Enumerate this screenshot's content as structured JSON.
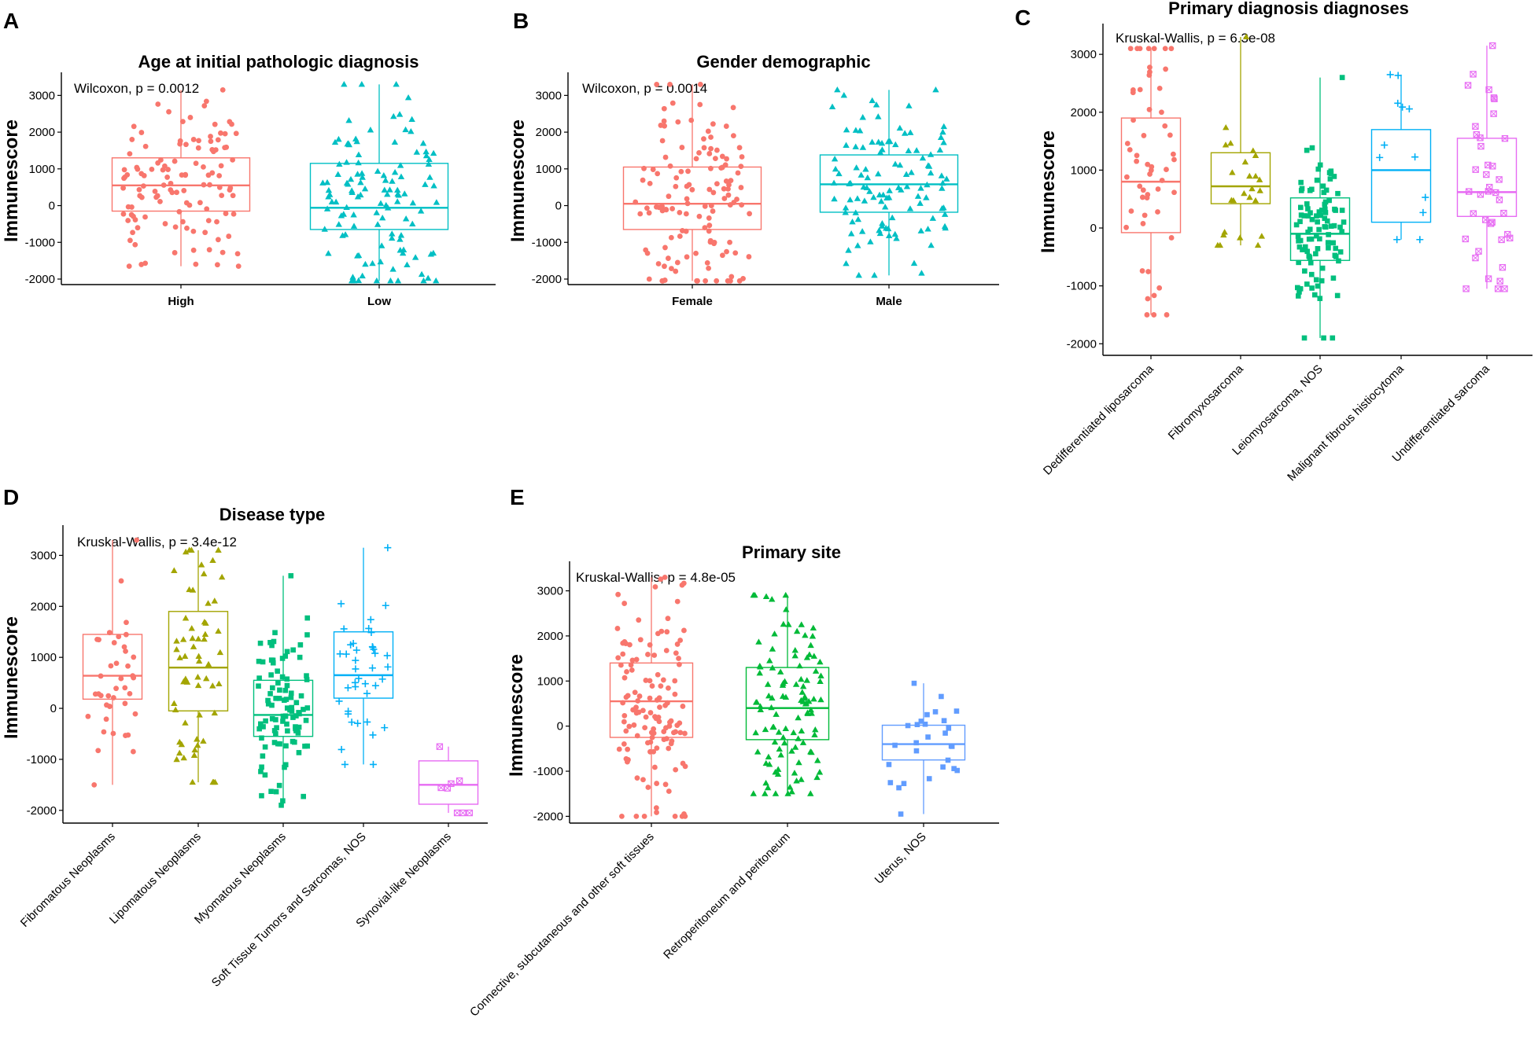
{
  "chart_data": [
    {
      "panel": "A",
      "type": "boxplot",
      "title": "Age at initial pathologic diagnosis",
      "test": "Wilcoxon, p = 0.0012",
      "ylabel": "Immunescore",
      "xlabel": "",
      "ylim": [
        -2150,
        3500
      ],
      "yticks": [
        3000,
        2000,
        1000,
        0,
        -1000,
        -2000
      ],
      "categories": [
        "High",
        "Low"
      ],
      "groups": [
        {
          "name": "High",
          "color": "#F8766D",
          "shape": "circle",
          "q1": -150,
          "median": 550,
          "q3": 1300,
          "lower": -1650,
          "upper": 3150,
          "n": 120
        },
        {
          "name": "Low",
          "color": "#00BFC4",
          "shape": "triangle",
          "q1": -650,
          "median": -60,
          "q3": 1150,
          "lower": -2050,
          "upper": 3300,
          "n": 120
        }
      ]
    },
    {
      "panel": "B",
      "type": "boxplot",
      "title": "Gender demographic",
      "test": "Wilcoxon, p = 0.0014",
      "ylabel": "Immunescore",
      "xlabel": "",
      "ylim": [
        -2150,
        3500
      ],
      "yticks": [
        3000,
        2000,
        1000,
        0,
        -1000,
        -2000
      ],
      "categories": [
        "Female",
        "Male"
      ],
      "groups": [
        {
          "name": "Female",
          "color": "#F8766D",
          "shape": "circle",
          "q1": -650,
          "median": 50,
          "q3": 1050,
          "lower": -2050,
          "upper": 3300,
          "n": 130
        },
        {
          "name": "Male",
          "color": "#00BFC4",
          "shape": "triangle",
          "q1": -180,
          "median": 580,
          "q3": 1380,
          "lower": -1900,
          "upper": 3150,
          "n": 115
        }
      ]
    },
    {
      "panel": "C",
      "type": "boxplot",
      "title": "Primary diagnosis diagnoses",
      "test": "Kruskal-Wallis, p = 6.3e-08",
      "ylabel": "Immunescore",
      "xlabel": "",
      "ylim": [
        -2200,
        3450
      ],
      "yticks": [
        3000,
        2000,
        1000,
        0,
        -1000,
        -2000
      ],
      "categories": [
        "Dedifferentiated liposarcoma",
        "Fibromyxosarcoma",
        "Leiomyosarcoma, NOS",
        "Malignant fibrous histiocytoma",
        "Undifferentiated sarcoma"
      ],
      "groups": [
        {
          "name": "Dedifferentiated liposarcoma",
          "color": "#F8766D",
          "shape": "circle",
          "q1": -80,
          "median": 800,
          "q3": 1900,
          "lower": -1500,
          "upper": 3100,
          "n": 55
        },
        {
          "name": "Fibromyxosarcoma",
          "color": "#A3A500",
          "shape": "triangle",
          "q1": 420,
          "median": 720,
          "q3": 1300,
          "lower": -300,
          "upper": 3300,
          "n": 25
        },
        {
          "name": "Leiomyosarcoma, NOS",
          "color": "#00BF7D",
          "shape": "square",
          "q1": -560,
          "median": -100,
          "q3": 520,
          "lower": -1900,
          "upper": 2600,
          "n": 100
        },
        {
          "name": "Malignant fibrous histiocytoma",
          "color": "#00B0F6",
          "shape": "plus",
          "q1": 100,
          "median": 1000,
          "q3": 1700,
          "lower": -200,
          "upper": 2650,
          "n": 12
        },
        {
          "name": "Undifferentiated sarcoma",
          "color": "#E76BF3",
          "shape": "boxx",
          "q1": 200,
          "median": 620,
          "q3": 1550,
          "lower": -1050,
          "upper": 3150,
          "n": 40
        }
      ]
    },
    {
      "panel": "D",
      "type": "boxplot",
      "title": "Disease type",
      "test": "Kruskal-Wallis, p = 3.4e-12",
      "ylabel": "Immunescore",
      "xlabel": "",
      "ylim": [
        -2250,
        3500
      ],
      "yticks": [
        3000,
        2000,
        1000,
        0,
        -1000,
        -2000
      ],
      "categories": [
        "Fibromatous Neoplasms",
        "Lipomatous Neoplasms",
        "Myomatous Neoplasms",
        "Soft Tissue Tumors and Sarcomas, NOS",
        "Synovial-like Neoplasms"
      ],
      "groups": [
        {
          "name": "Fibromatous Neoplasms",
          "color": "#F8766D",
          "shape": "circle",
          "q1": 180,
          "median": 640,
          "q3": 1450,
          "lower": -1500,
          "upper": 3300,
          "n": 40
        },
        {
          "name": "Lipomatous Neoplasms",
          "color": "#A3A500",
          "shape": "triangle",
          "q1": -50,
          "median": 800,
          "q3": 1900,
          "lower": -1450,
          "upper": 3100,
          "n": 60
        },
        {
          "name": "Myomatous Neoplasms",
          "color": "#00BF7D",
          "shape": "square",
          "q1": -550,
          "median": -130,
          "q3": 550,
          "lower": -1900,
          "upper": 2600,
          "n": 100
        },
        {
          "name": "Soft Tissue Tumors and Sarcomas, NOS",
          "color": "#00B0F6",
          "shape": "plus",
          "q1": 200,
          "median": 650,
          "q3": 1500,
          "lower": -1100,
          "upper": 3150,
          "n": 40
        },
        {
          "name": "Synovial-like Neoplasms",
          "color": "#E76BF3",
          "shape": "boxx",
          "q1": -1880,
          "median": -1500,
          "q3": -1030,
          "lower": -2050,
          "upper": -750,
          "n": 8
        }
      ]
    },
    {
      "panel": "E",
      "type": "boxplot",
      "title": "Primary site",
      "test": "Kruskal-Wallis, p = 4.8e-05",
      "ylabel": "Immunescore",
      "xlabel": "",
      "ylim": [
        -2150,
        3550
      ],
      "yticks": [
        3000,
        2000,
        1000,
        0,
        -1000,
        -2000
      ],
      "categories": [
        "Connective, subcutaneous and other soft tissues",
        "Retroperitoneum and peritoneum",
        "Uterus, NOS"
      ],
      "groups": [
        {
          "name": "Connective, subcutaneous and other soft tissues",
          "color": "#F8766D",
          "shape": "circle",
          "q1": -250,
          "median": 550,
          "q3": 1400,
          "lower": -2000,
          "upper": 3300,
          "n": 130
        },
        {
          "name": "Retroperitoneum and peritoneum",
          "color": "#00BA38",
          "shape": "triangle",
          "q1": -300,
          "median": 400,
          "q3": 1300,
          "lower": -1500,
          "upper": 2900,
          "n": 110
        },
        {
          "name": "Uterus, NOS",
          "color": "#619CFF",
          "shape": "square",
          "q1": -750,
          "median": -400,
          "q3": 20,
          "lower": -1950,
          "upper": 950,
          "n": 28
        }
      ]
    }
  ]
}
